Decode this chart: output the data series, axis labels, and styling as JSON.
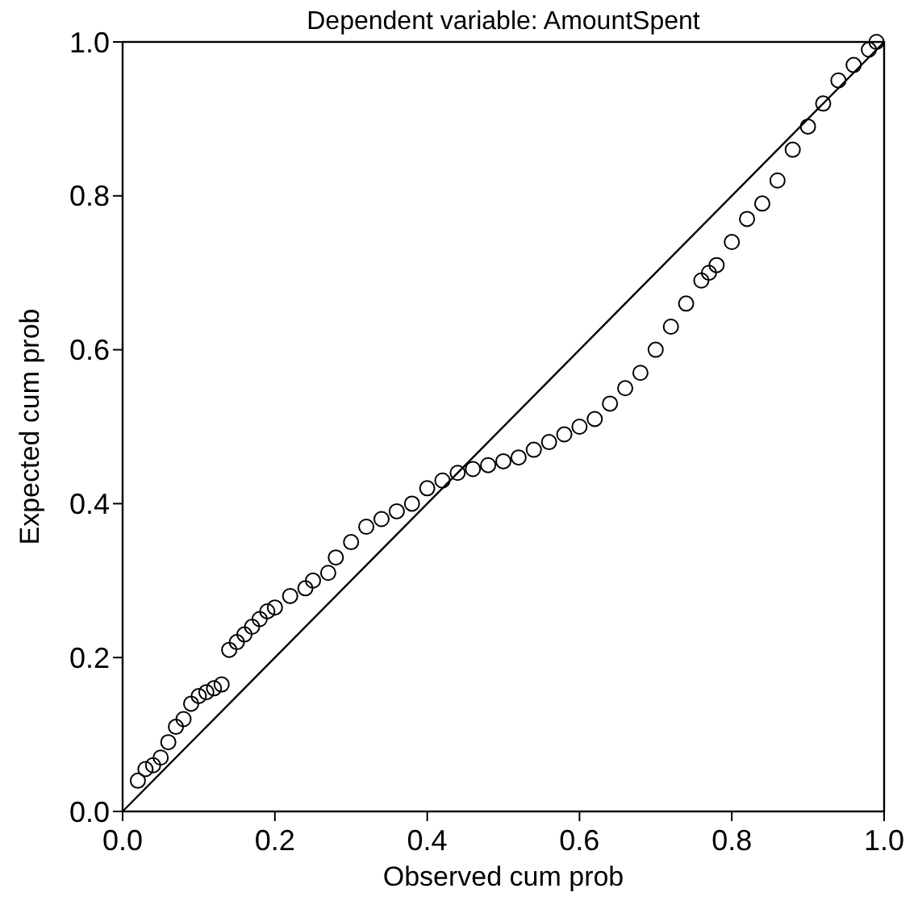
{
  "chart_data": {
    "type": "scatter",
    "title": "Dependent variable: AmountSpent",
    "xlabel": "Observed cum prob",
    "ylabel": "Expected cum prob",
    "xlim": [
      0,
      1
    ],
    "ylim": [
      0,
      1
    ],
    "xticks": [
      {
        "value": 0,
        "label": "0.0"
      },
      {
        "value": 0.2,
        "label": "0.2"
      },
      {
        "value": 0.4,
        "label": "0.4"
      },
      {
        "value": 0.6,
        "label": "0.6"
      },
      {
        "value": 0.8,
        "label": "0.8"
      },
      {
        "value": 1,
        "label": "1.0"
      }
    ],
    "yticks": [
      {
        "value": 0,
        "label": "0.0"
      },
      {
        "value": 0.2,
        "label": "0.2"
      },
      {
        "value": 0.4,
        "label": "0.4"
      },
      {
        "value": 0.6,
        "label": "0.6"
      },
      {
        "value": 0.8,
        "label": "0.8"
      },
      {
        "value": 1,
        "label": "1.0"
      }
    ],
    "grid": false,
    "series": [
      {
        "color": "#000000",
        "marker": "circle",
        "x": [
          0.02,
          0.03,
          0.04,
          0.05,
          0.06,
          0.07,
          0.08,
          0.09,
          0.1,
          0.11,
          0.12,
          0.13,
          0.14,
          0.15,
          0.16,
          0.17,
          0.18,
          0.19,
          0.2,
          0.22,
          0.24,
          0.25,
          0.27,
          0.28,
          0.3,
          0.32,
          0.34,
          0.36,
          0.38,
          0.4,
          0.42,
          0.44,
          0.46,
          0.48,
          0.5,
          0.52,
          0.54,
          0.56,
          0.58,
          0.6,
          0.62,
          0.64,
          0.66,
          0.68,
          0.7,
          0.72,
          0.74,
          0.76,
          0.77,
          0.78,
          0.8,
          0.82,
          0.84,
          0.86,
          0.88,
          0.9,
          0.92,
          0.94,
          0.96,
          0.98,
          0.99
        ],
        "values": [
          0.04,
          0.055,
          0.06,
          0.07,
          0.09,
          0.11,
          0.12,
          0.14,
          0.15,
          0.155,
          0.16,
          0.165,
          0.21,
          0.22,
          0.23,
          0.24,
          0.25,
          0.26,
          0.265,
          0.28,
          0.29,
          0.3,
          0.31,
          0.33,
          0.35,
          0.37,
          0.38,
          0.39,
          0.4,
          0.42,
          0.43,
          0.44,
          0.445,
          0.45,
          0.455,
          0.46,
          0.47,
          0.48,
          0.49,
          0.5,
          0.51,
          0.53,
          0.55,
          0.57,
          0.6,
          0.63,
          0.66,
          0.69,
          0.7,
          0.71,
          0.74,
          0.77,
          0.79,
          0.82,
          0.86,
          0.89,
          0.92,
          0.95,
          0.97,
          0.99,
          1.0
        ]
      },
      {
        "type": "line",
        "color": "#000000",
        "marker": "none",
        "line_style": "solid",
        "x": [
          0,
          1
        ],
        "values": [
          0,
          1
        ]
      }
    ]
  }
}
